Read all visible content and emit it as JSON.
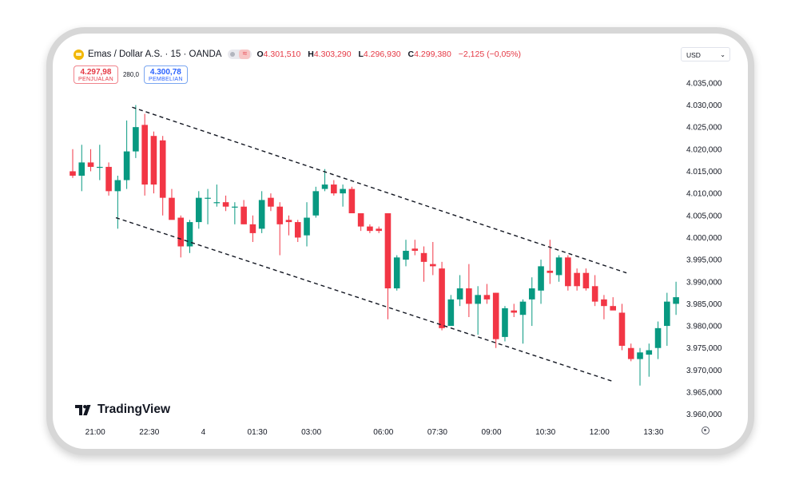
{
  "header": {
    "symbol": "Emas / Dollar A.S. · 15 · OANDA",
    "open_key": "O",
    "open": "4.301,510",
    "high_key": "H",
    "high": "4.303,290",
    "low_key": "L",
    "low": "4.296,930",
    "close_key": "C",
    "close": "4.299,380",
    "change": "−2,125 (−0,05%)",
    "sell_value": "4.297,98",
    "sell_label": "PENJUALAN",
    "spread": "280,0",
    "buy_value": "4.300,78",
    "buy_label": "PEMBELIAN",
    "currency": "USD",
    "brand": "TradingView"
  },
  "colors": {
    "up": "#089981",
    "down": "#f23645",
    "trendline": "#131722"
  },
  "chart_data": {
    "type": "candlestick",
    "y_ticks": [
      3960,
      3965,
      3970,
      3975,
      3980,
      3985,
      3990,
      3995,
      4000,
      4005,
      4010,
      4015,
      4020,
      4025,
      4030,
      4035
    ],
    "y_tick_labels": [
      "3.960,000",
      "3.965,000",
      "3.970,000",
      "3.975,000",
      "3.980,000",
      "3.985,000",
      "3.990,000",
      "3.995,000",
      "4.000,000",
      "4.005,000",
      "4.010,000",
      "4.015,000",
      "4.020,000",
      "4.025,000",
      "4.030,000",
      "4.035,000"
    ],
    "ylim": [
      3958.5,
      4037.5
    ],
    "x_ticks": [
      {
        "index": 2.5,
        "label": "21:00"
      },
      {
        "index": 8.5,
        "label": "22:30"
      },
      {
        "index": 14.5,
        "label": "4"
      },
      {
        "index": 20.5,
        "label": "01:30"
      },
      {
        "index": 26.5,
        "label": "03:00"
      },
      {
        "index": 34.5,
        "label": "06:00"
      },
      {
        "index": 40.5,
        "label": "07:30"
      },
      {
        "index": 46.5,
        "label": "09:00"
      },
      {
        "index": 52.5,
        "label": "10:30"
      },
      {
        "index": 58.5,
        "label": "12:00"
      },
      {
        "index": 64.5,
        "label": "13:30"
      }
    ],
    "candles": [
      {
        "o": 4015.0,
        "h": 4020.0,
        "l": 4013.5,
        "c": 4014.0
      },
      {
        "o": 4014.0,
        "h": 4021.0,
        "l": 4010.5,
        "c": 4017.0
      },
      {
        "o": 4017.0,
        "h": 4020.0,
        "l": 4015.0,
        "c": 4016.0
      },
      {
        "o": 4016.0,
        "h": 4021.0,
        "l": 4013.0,
        "c": 4016.0
      },
      {
        "o": 4016.0,
        "h": 4017.0,
        "l": 4009.5,
        "c": 4010.5
      },
      {
        "o": 4010.5,
        "h": 4014.0,
        "l": 4002.0,
        "c": 4013.0
      },
      {
        "o": 4013.0,
        "h": 4026.5,
        "l": 4011.0,
        "c": 4019.5
      },
      {
        "o": 4019.5,
        "h": 4030.0,
        "l": 4018.0,
        "c": 4025.0
      },
      {
        "o": 4025.5,
        "h": 4028.0,
        "l": 4009.5,
        "c": 4012.0
      },
      {
        "o": 4023.0,
        "h": 4024.0,
        "l": 4010.0,
        "c": 4012.0
      },
      {
        "o": 4022.0,
        "h": 4023.0,
        "l": 4005.0,
        "c": 4009.0
      },
      {
        "o": 4009.0,
        "h": 4011.0,
        "l": 4004.5,
        "c": 4004.0
      },
      {
        "o": 4004.5,
        "h": 4005.0,
        "l": 3995.5,
        "c": 3998.0
      },
      {
        "o": 3998.0,
        "h": 4004.0,
        "l": 3996.5,
        "c": 4003.5
      },
      {
        "o": 4003.5,
        "h": 4010.5,
        "l": 4002.0,
        "c": 4009.0
      },
      {
        "o": 4009.0,
        "h": 4011.0,
        "l": 4003.0,
        "c": 4009.0
      },
      {
        "o": 4008.0,
        "h": 4012.0,
        "l": 4007.0,
        "c": 4008.0
      },
      {
        "o": 4008.0,
        "h": 4009.5,
        "l": 4006.0,
        "c": 4007.0
      },
      {
        "o": 4007.0,
        "h": 4008.0,
        "l": 4003.0,
        "c": 4007.0
      },
      {
        "o": 4007.0,
        "h": 4008.5,
        "l": 4003.0,
        "c": 4003.0
      },
      {
        "o": 4003.0,
        "h": 4005.0,
        "l": 3999.0,
        "c": 4001.0
      },
      {
        "o": 4002.0,
        "h": 4010.5,
        "l": 4001.0,
        "c": 4008.5
      },
      {
        "o": 4009.0,
        "h": 4010.0,
        "l": 4006.0,
        "c": 4007.0
      },
      {
        "o": 4007.0,
        "h": 4008.0,
        "l": 3996.0,
        "c": 4003.0
      },
      {
        "o": 4004.0,
        "h": 4005.0,
        "l": 4000.5,
        "c": 4003.5
      },
      {
        "o": 4003.5,
        "h": 4004.0,
        "l": 3999.0,
        "c": 4000.0
      },
      {
        "o": 4000.5,
        "h": 4008.0,
        "l": 3998.0,
        "c": 4004.5
      },
      {
        "o": 4005.0,
        "h": 4011.5,
        "l": 4004.5,
        "c": 4010.5
      },
      {
        "o": 4011.0,
        "h": 4015.5,
        "l": 4010.5,
        "c": 4012.0
      },
      {
        "o": 4012.0,
        "h": 4013.0,
        "l": 4009.5,
        "c": 4010.0
      },
      {
        "o": 4010.0,
        "h": 4012.0,
        "l": 4007.0,
        "c": 4011.0
      },
      {
        "o": 4011.0,
        "h": 4011.5,
        "l": 4005.5,
        "c": 4005.5
      },
      {
        "o": 4005.5,
        "h": 4005.5,
        "l": 4001.5,
        "c": 4002.5
      },
      {
        "o": 4002.5,
        "h": 4003.0,
        "l": 4001.0,
        "c": 4001.5
      },
      {
        "o": 4002.0,
        "h": 4002.5,
        "l": 4001.0,
        "c": 4001.5
      },
      {
        "o": 4005.5,
        "h": 4005.5,
        "l": 3981.5,
        "c": 3988.5
      },
      {
        "o": 3988.5,
        "h": 3996.0,
        "l": 3988.0,
        "c": 3995.5
      },
      {
        "o": 3995.0,
        "h": 3999.5,
        "l": 3993.5,
        "c": 3997.0
      },
      {
        "o": 3997.5,
        "h": 3999.5,
        "l": 3996.0,
        "c": 3997.0
      },
      {
        "o": 3996.5,
        "h": 3998.0,
        "l": 3990.0,
        "c": 3994.5
      },
      {
        "o": 3994.0,
        "h": 3999.0,
        "l": 3991.5,
        "c": 3993.5
      },
      {
        "o": 3993.0,
        "h": 3994.5,
        "l": 3979.0,
        "c": 3979.5
      },
      {
        "o": 3980.0,
        "h": 3987.0,
        "l": 3980.0,
        "c": 3986.0
      },
      {
        "o": 3986.0,
        "h": 3991.5,
        "l": 3984.5,
        "c": 3988.5
      },
      {
        "o": 3988.5,
        "h": 3994.0,
        "l": 3982.0,
        "c": 3985.0
      },
      {
        "o": 3985.0,
        "h": 3989.0,
        "l": 3978.0,
        "c": 3987.0
      },
      {
        "o": 3987.0,
        "h": 3989.5,
        "l": 3985.0,
        "c": 3986.0
      },
      {
        "o": 3987.5,
        "h": 3987.5,
        "l": 3975.0,
        "c": 3977.0
      },
      {
        "o": 3977.5,
        "h": 3984.5,
        "l": 3976.5,
        "c": 3984.0
      },
      {
        "o": 3983.5,
        "h": 3985.0,
        "l": 3982.0,
        "c": 3983.0
      },
      {
        "o": 3982.5,
        "h": 3986.0,
        "l": 3976.0,
        "c": 3985.5
      },
      {
        "o": 3986.0,
        "h": 3991.0,
        "l": 3980.0,
        "c": 3988.5
      },
      {
        "o": 3988.0,
        "h": 3995.0,
        "l": 3985.0,
        "c": 3993.5
      },
      {
        "o": 3992.5,
        "h": 3999.5,
        "l": 3989.5,
        "c": 3992.0
      },
      {
        "o": 3991.5,
        "h": 3996.0,
        "l": 3990.0,
        "c": 3995.5
      },
      {
        "o": 3995.5,
        "h": 3996.0,
        "l": 3988.0,
        "c": 3989.0
      },
      {
        "o": 3992.0,
        "h": 3993.0,
        "l": 3988.0,
        "c": 3989.0
      },
      {
        "o": 3992.0,
        "h": 3993.0,
        "l": 3988.0,
        "c": 3988.5
      },
      {
        "o": 3989.0,
        "h": 3991.5,
        "l": 3984.5,
        "c": 3985.5
      },
      {
        "o": 3986.0,
        "h": 3987.0,
        "l": 3981.5,
        "c": 3984.5
      },
      {
        "o": 3984.5,
        "h": 3986.5,
        "l": 3984.0,
        "c": 3983.5
      },
      {
        "o": 3983.0,
        "h": 3985.0,
        "l": 3974.5,
        "c": 3975.5
      },
      {
        "o": 3975.0,
        "h": 3976.0,
        "l": 3972.0,
        "c": 3972.5
      },
      {
        "o": 3972.5,
        "h": 3975.0,
        "l": 3966.5,
        "c": 3974.0
      },
      {
        "o": 3973.5,
        "h": 3976.0,
        "l": 3968.5,
        "c": 3974.5
      },
      {
        "o": 3975.0,
        "h": 3981.0,
        "l": 3972.5,
        "c": 3979.5
      },
      {
        "o": 3980.0,
        "h": 3987.5,
        "l": 3975.5,
        "c": 3985.5
      },
      {
        "o": 3985.0,
        "h": 3990.0,
        "l": 3982.5,
        "c": 3986.5
      }
    ],
    "trendlines": [
      {
        "x1": 6.6,
        "y1": 4029.5,
        "x2": 61.5,
        "y2": 3992.0
      },
      {
        "x1": 4.8,
        "y1": 4004.5,
        "x2": 59.9,
        "y2": 3967.5
      }
    ]
  }
}
